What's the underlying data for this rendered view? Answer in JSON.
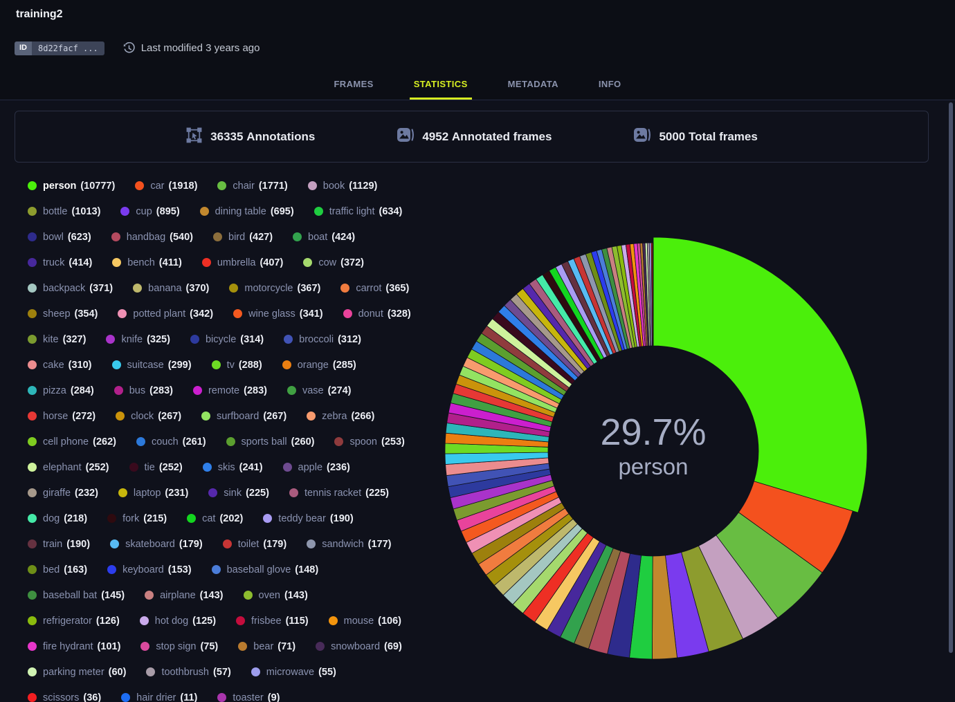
{
  "header": {
    "title": "training2",
    "id_label": "ID",
    "id_value": "8d22facf ...",
    "modified": "Last modified 3 years ago"
  },
  "tabs": [
    {
      "label": "FRAMES",
      "active": false
    },
    {
      "label": "STATISTICS",
      "active": true
    },
    {
      "label": "METADATA",
      "active": false
    },
    {
      "label": "INFO",
      "active": false
    }
  ],
  "stats": [
    {
      "icon": "annotations-icon",
      "value": "36335",
      "label": "Annotations"
    },
    {
      "icon": "image-icon",
      "value": "4952",
      "label": "Annotated frames"
    },
    {
      "icon": "image-icon",
      "value": "5000",
      "label": "Total frames"
    }
  ],
  "colors": {
    "accent": "#d7ef22",
    "page_bg": "#0f111b"
  },
  "chart_data": {
    "type": "pie",
    "subtype": "donut",
    "total": 36335,
    "center_percent": "29.7%",
    "center_label": "person",
    "highlighted": "person",
    "legend_position": "left",
    "classes": [
      {
        "name": "person",
        "count": 10777,
        "color": "#4bef0b"
      },
      {
        "name": "car",
        "count": 1918,
        "color": "#f4511e"
      },
      {
        "name": "chair",
        "count": 1771,
        "color": "#68bd42"
      },
      {
        "name": "book",
        "count": 1129,
        "color": "#c4a0c0"
      },
      {
        "name": "bottle",
        "count": 1013,
        "color": "#8d9c2e"
      },
      {
        "name": "cup",
        "count": 895,
        "color": "#7a3bee"
      },
      {
        "name": "dining table",
        "count": 695,
        "color": "#c2882e"
      },
      {
        "name": "traffic light",
        "count": 634,
        "color": "#1fcd40"
      },
      {
        "name": "bowl",
        "count": 623,
        "color": "#2e2b8c"
      },
      {
        "name": "handbag",
        "count": 540,
        "color": "#b44a5f"
      },
      {
        "name": "bird",
        "count": 427,
        "color": "#8c6e3c"
      },
      {
        "name": "boat",
        "count": 424,
        "color": "#32a24d"
      },
      {
        "name": "truck",
        "count": 414,
        "color": "#47289c"
      },
      {
        "name": "bench",
        "count": 411,
        "color": "#f6c862"
      },
      {
        "name": "umbrella",
        "count": 407,
        "color": "#ee2f24"
      },
      {
        "name": "cow",
        "count": 372,
        "color": "#a5d96d"
      },
      {
        "name": "backpack",
        "count": 371,
        "color": "#a4c7c1"
      },
      {
        "name": "banana",
        "count": 370,
        "color": "#beb86c"
      },
      {
        "name": "motorcycle",
        "count": 367,
        "color": "#a5900c"
      },
      {
        "name": "carrot",
        "count": 365,
        "color": "#f07c3f"
      },
      {
        "name": "sheep",
        "count": 354,
        "color": "#9d800d"
      },
      {
        "name": "potted plant",
        "count": 342,
        "color": "#ef90b4"
      },
      {
        "name": "wine glass",
        "count": 341,
        "color": "#f4591f"
      },
      {
        "name": "donut",
        "count": 328,
        "color": "#e9439b"
      },
      {
        "name": "kite",
        "count": 327,
        "color": "#7b9b2f"
      },
      {
        "name": "knife",
        "count": 325,
        "color": "#a933ca"
      },
      {
        "name": "bicycle",
        "count": 314,
        "color": "#2d3a9e"
      },
      {
        "name": "broccoli",
        "count": 312,
        "color": "#4153b5"
      },
      {
        "name": "cake",
        "count": 310,
        "color": "#eb8c8e"
      },
      {
        "name": "suitcase",
        "count": 299,
        "color": "#39caed"
      },
      {
        "name": "tv",
        "count": 288,
        "color": "#6ddb24"
      },
      {
        "name": "orange",
        "count": 285,
        "color": "#eb7f11"
      },
      {
        "name": "pizza",
        "count": 284,
        "color": "#2db6b9"
      },
      {
        "name": "bus",
        "count": 283,
        "color": "#b1208b"
      },
      {
        "name": "remote",
        "count": 283,
        "color": "#cb1fce"
      },
      {
        "name": "vase",
        "count": 274,
        "color": "#40a042"
      },
      {
        "name": "horse",
        "count": 272,
        "color": "#e63835"
      },
      {
        "name": "clock",
        "count": 267,
        "color": "#ca930b"
      },
      {
        "name": "surfboard",
        "count": 267,
        "color": "#93e362"
      },
      {
        "name": "zebra",
        "count": 266,
        "color": "#f89b6e"
      },
      {
        "name": "cell phone",
        "count": 262,
        "color": "#7fcc20"
      },
      {
        "name": "couch",
        "count": 261,
        "color": "#2c79da"
      },
      {
        "name": "sports ball",
        "count": 260,
        "color": "#5b9f2f"
      },
      {
        "name": "spoon",
        "count": 253,
        "color": "#8f3b3d"
      },
      {
        "name": "elephant",
        "count": 252,
        "color": "#cef29c"
      },
      {
        "name": "tie",
        "count": 252,
        "color": "#390a1d"
      },
      {
        "name": "skis",
        "count": 241,
        "color": "#2f7fe9"
      },
      {
        "name": "apple",
        "count": 236,
        "color": "#6e4b90"
      },
      {
        "name": "giraffe",
        "count": 232,
        "color": "#a6998b"
      },
      {
        "name": "laptop",
        "count": 231,
        "color": "#c7b60c"
      },
      {
        "name": "sink",
        "count": 225,
        "color": "#5628ac"
      },
      {
        "name": "tennis racket",
        "count": 225,
        "color": "#a95b7e"
      },
      {
        "name": "dog",
        "count": 218,
        "color": "#45eaa8"
      },
      {
        "name": "fork",
        "count": 215,
        "color": "#2e0a0f"
      },
      {
        "name": "cat",
        "count": 202,
        "color": "#13d51f"
      },
      {
        "name": "teddy bear",
        "count": 190,
        "color": "#a99cf3"
      },
      {
        "name": "train",
        "count": 190,
        "color": "#653140"
      },
      {
        "name": "skateboard",
        "count": 179,
        "color": "#58baf3"
      },
      {
        "name": "toilet",
        "count": 179,
        "color": "#c73535"
      },
      {
        "name": "sandwich",
        "count": 177,
        "color": "#8e96ad"
      },
      {
        "name": "bed",
        "count": 163,
        "color": "#6e8e17"
      },
      {
        "name": "keyboard",
        "count": 153,
        "color": "#2c3ded"
      },
      {
        "name": "baseball glove",
        "count": 148,
        "color": "#4b7dd9"
      },
      {
        "name": "baseball bat",
        "count": 145,
        "color": "#3e8f40"
      },
      {
        "name": "airplane",
        "count": 143,
        "color": "#c98081"
      },
      {
        "name": "oven",
        "count": 143,
        "color": "#8dbc2f"
      },
      {
        "name": "refrigerator",
        "count": 126,
        "color": "#8abb0d"
      },
      {
        "name": "hot dog",
        "count": 125,
        "color": "#caaaeb"
      },
      {
        "name": "frisbee",
        "count": 115,
        "color": "#c40d3d"
      },
      {
        "name": "mouse",
        "count": 106,
        "color": "#f3940d"
      },
      {
        "name": "fire hydrant",
        "count": 101,
        "color": "#e736ca"
      },
      {
        "name": "stop sign",
        "count": 75,
        "color": "#d94a9d"
      },
      {
        "name": "bear",
        "count": 71,
        "color": "#b97b2f"
      },
      {
        "name": "snowboard",
        "count": 69,
        "color": "#482b59"
      },
      {
        "name": "parking meter",
        "count": 60,
        "color": "#d0f3b3"
      },
      {
        "name": "toothbrush",
        "count": 57,
        "color": "#a89ca8"
      },
      {
        "name": "microwave",
        "count": 55,
        "color": "#9d9ded"
      },
      {
        "name": "scissors",
        "count": 36,
        "color": "#f31e21"
      },
      {
        "name": "hair drier",
        "count": 11,
        "color": "#1d6df3"
      },
      {
        "name": "toaster",
        "count": 9,
        "color": "#a935ad"
      }
    ]
  }
}
